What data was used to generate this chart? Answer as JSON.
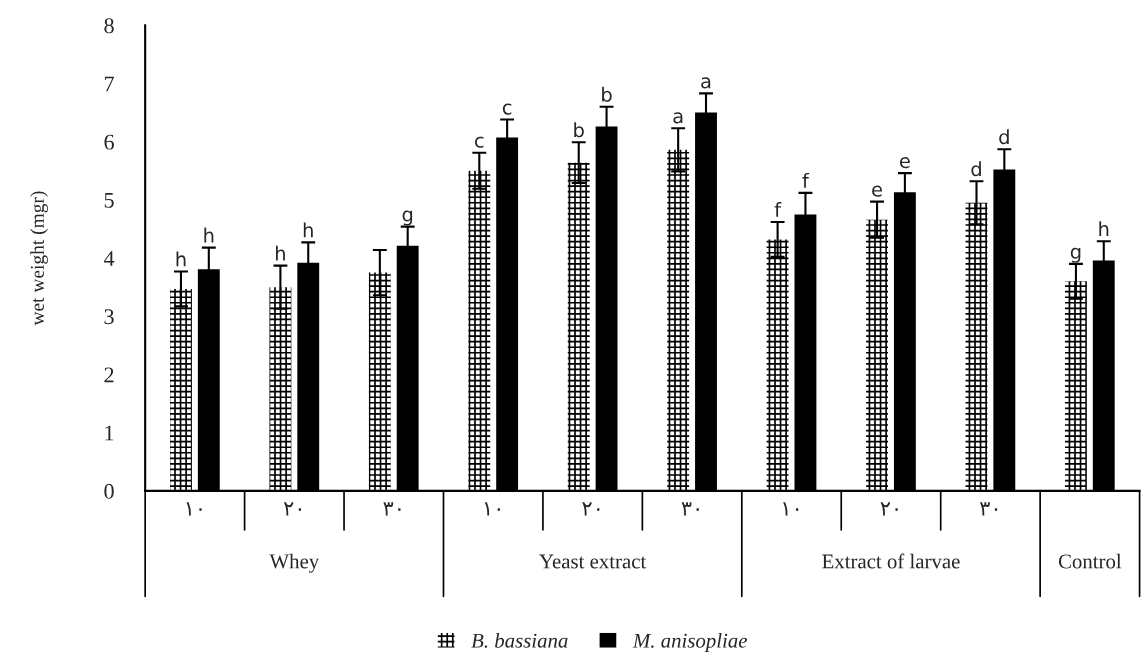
{
  "chart_data": {
    "type": "bar",
    "ylabel": "wet weight (mgr)",
    "categories": [
      "١٠",
      "٢٠",
      "٣٠",
      "١٠",
      "٢٠",
      "٣٠",
      "١٠",
      "٢٠",
      "٣٠",
      null
    ],
    "annotations": [
      "Whey",
      "Yeast extract",
      "Extract of larvae",
      "Control"
    ],
    "series": [
      {
        "name": "B. bassiana",
        "color": "#ffffff",
        "values": [
          3.47,
          3.5,
          3.75,
          5.5,
          5.64,
          5.86,
          4.32,
          4.66,
          4.95,
          3.6
        ],
        "errors": [
          0.3,
          0.37,
          0.39,
          0.31,
          0.35,
          0.37,
          0.3,
          0.31,
          0.37,
          0.3
        ],
        "value_labels": [
          "h",
          "h",
          null,
          "c",
          "b",
          "a",
          "f",
          "e",
          "d",
          "g"
        ]
      },
      {
        "name": "M. anisopliae",
        "color": "#000000",
        "values": [
          3.81,
          3.92,
          4.21,
          6.07,
          6.26,
          6.5,
          4.75,
          5.13,
          5.52,
          3.96
        ],
        "errors": [
          0.37,
          0.35,
          0.33,
          0.31,
          0.34,
          0.33,
          0.37,
          0.33,
          0.35,
          0.33
        ],
        "value_labels": [
          "h",
          "h",
          "g",
          "c",
          "b",
          "a",
          "f",
          "e",
          "d",
          "h"
        ]
      }
    ],
    "ylim": [
      0,
      8
    ],
    "yticks": [
      0,
      1,
      2,
      3,
      4,
      5,
      6,
      7,
      8
    ],
    "grid": false,
    "legend": "bottom"
  }
}
